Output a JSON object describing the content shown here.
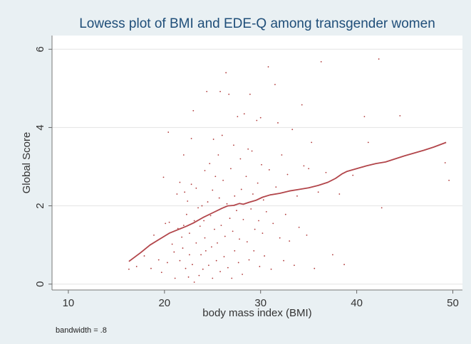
{
  "chart_data": {
    "type": "scatter",
    "title": "Lowess plot of BMI and EDE-Q among transgender women",
    "xlabel": "body mass index (BMI)",
    "ylabel": "Global Score",
    "note": "bandwidth = .8",
    "xlim": [
      8.3,
      51
    ],
    "ylim": [
      -0.15,
      6.35
    ],
    "xticks": [
      10,
      20,
      30,
      40,
      50
    ],
    "yticks": [
      0,
      2,
      4,
      6
    ],
    "grid": true,
    "colors": {
      "points": "#b03a3a",
      "line": "#b2454a",
      "plot_bg": "#ffffff",
      "outer_bg": "#e9f0f3",
      "title": "#1f4e79",
      "grid": "#e3e3e3"
    },
    "series": [
      {
        "type": "scatter",
        "points": [
          [
            16.3,
            0.38
          ],
          [
            17.1,
            0.45
          ],
          [
            17.9,
            0.72
          ],
          [
            18.6,
            0.4
          ],
          [
            18.9,
            1.25
          ],
          [
            19.4,
            0.62
          ],
          [
            19.7,
            0.3
          ],
          [
            19.9,
            2.73
          ],
          [
            20.1,
            1.55
          ],
          [
            20.3,
            0.55
          ],
          [
            20.4,
            3.88
          ],
          [
            20.5,
            1.58
          ],
          [
            20.8,
            1.02
          ],
          [
            21.0,
            0.82
          ],
          [
            21.1,
            0.15
          ],
          [
            21.3,
            2.3
          ],
          [
            21.4,
            1.42
          ],
          [
            21.6,
            2.6
          ],
          [
            21.6,
            0.6
          ],
          [
            21.8,
            1.2
          ],
          [
            21.9,
            0.92
          ],
          [
            22.0,
            3.3
          ],
          [
            22.0,
            1.5
          ],
          [
            22.1,
            2.35
          ],
          [
            22.2,
            0.4
          ],
          [
            22.3,
            1.78
          ],
          [
            22.4,
            2.12
          ],
          [
            22.5,
            0.18
          ],
          [
            22.6,
            0.75
          ],
          [
            22.6,
            1.3
          ],
          [
            22.8,
            3.72
          ],
          [
            22.8,
            2.55
          ],
          [
            22.9,
            0.5
          ],
          [
            23.0,
            4.43
          ],
          [
            23.1,
            1.62
          ],
          [
            23.1,
            0.05
          ],
          [
            23.3,
            1.05
          ],
          [
            23.3,
            2.45
          ],
          [
            23.5,
            1.95
          ],
          [
            23.6,
            0.22
          ],
          [
            23.7,
            1.48
          ],
          [
            23.8,
            0.75
          ],
          [
            23.9,
            2.0
          ],
          [
            24.0,
            0.38
          ],
          [
            24.1,
            1.62
          ],
          [
            24.2,
            1.18
          ],
          [
            24.2,
            2.9
          ],
          [
            24.3,
            0.85
          ],
          [
            24.4,
            4.92
          ],
          [
            24.5,
            2.1
          ],
          [
            24.6,
            0.48
          ],
          [
            24.7,
            3.08
          ],
          [
            24.8,
            1.75
          ],
          [
            24.9,
            0.95
          ],
          [
            25.0,
            2.4
          ],
          [
            25.0,
            0.15
          ],
          [
            25.1,
            3.7
          ],
          [
            25.2,
            1.4
          ],
          [
            25.3,
            2.75
          ],
          [
            25.4,
            0.6
          ],
          [
            25.5,
            1.05
          ],
          [
            25.6,
            3.3
          ],
          [
            25.7,
            2.2
          ],
          [
            25.8,
            4.92
          ],
          [
            25.8,
            0.32
          ],
          [
            25.9,
            1.5
          ],
          [
            26.0,
            3.8
          ],
          [
            26.1,
            2.65
          ],
          [
            26.2,
            0.7
          ],
          [
            26.3,
            1.22
          ],
          [
            26.4,
            5.4
          ],
          [
            26.5,
            2.05
          ],
          [
            26.6,
            0.42
          ],
          [
            26.7,
            4.85
          ],
          [
            26.8,
            1.68
          ],
          [
            26.9,
            2.95
          ],
          [
            27.0,
            0.15
          ],
          [
            27.1,
            1.35
          ],
          [
            27.2,
            3.55
          ],
          [
            27.3,
            0.85
          ],
          [
            27.3,
            2.25
          ],
          [
            27.5,
            1.88
          ],
          [
            27.6,
            4.28
          ],
          [
            27.7,
            0.55
          ],
          [
            27.8,
            1.15
          ],
          [
            27.9,
            3.2
          ],
          [
            28.0,
            2.42
          ],
          [
            28.1,
            0.25
          ],
          [
            28.2,
            1.65
          ],
          [
            28.3,
            4.35
          ],
          [
            28.5,
            2.75
          ],
          [
            28.6,
            1.08
          ],
          [
            28.7,
            3.45
          ],
          [
            28.8,
            0.62
          ],
          [
            28.9,
            4.85
          ],
          [
            29.0,
            1.92
          ],
          [
            29.1,
            3.4
          ],
          [
            29.2,
            2.3
          ],
          [
            29.3,
            0.85
          ],
          [
            29.4,
            1.4
          ],
          [
            29.6,
            4.18
          ],
          [
            29.7,
            2.58
          ],
          [
            29.8,
            1.62
          ],
          [
            29.9,
            0.45
          ],
          [
            30.0,
            4.25
          ],
          [
            30.1,
            3.05
          ],
          [
            30.2,
            1.3
          ],
          [
            30.3,
            2.15
          ],
          [
            30.4,
            0.72
          ],
          [
            30.6,
            1.85
          ],
          [
            30.8,
            5.55
          ],
          [
            30.9,
            2.92
          ],
          [
            31.1,
            0.38
          ],
          [
            31.3,
            1.55
          ],
          [
            31.5,
            5.1
          ],
          [
            31.6,
            2.48
          ],
          [
            31.8,
            4.12
          ],
          [
            32.0,
            1.18
          ],
          [
            32.2,
            3.3
          ],
          [
            32.4,
            0.6
          ],
          [
            32.6,
            1.78
          ],
          [
            32.8,
            2.8
          ],
          [
            33.0,
            1.1
          ],
          [
            33.3,
            3.95
          ],
          [
            33.5,
            0.48
          ],
          [
            33.8,
            2.25
          ],
          [
            34.0,
            1.45
          ],
          [
            34.3,
            4.58
          ],
          [
            34.5,
            3.02
          ],
          [
            34.8,
            1.25
          ],
          [
            35.0,
            2.95
          ],
          [
            35.3,
            3.62
          ],
          [
            35.6,
            0.4
          ],
          [
            36.0,
            2.35
          ],
          [
            36.3,
            5.68
          ],
          [
            36.8,
            2.85
          ],
          [
            37.5,
            0.75
          ],
          [
            38.2,
            2.3
          ],
          [
            38.7,
            0.5
          ],
          [
            39.6,
            2.78
          ],
          [
            40.8,
            4.28
          ],
          [
            41.2,
            3.62
          ],
          [
            42.3,
            5.75
          ],
          [
            42.6,
            1.95
          ],
          [
            44.5,
            4.3
          ],
          [
            49.2,
            3.1
          ],
          [
            49.6,
            2.65
          ]
        ]
      },
      {
        "type": "line",
        "points": [
          [
            16.3,
            0.58
          ],
          [
            17.5,
            0.8
          ],
          [
            18.5,
            1.0
          ],
          [
            19.5,
            1.15
          ],
          [
            20.5,
            1.3
          ],
          [
            21.5,
            1.4
          ],
          [
            22.3,
            1.48
          ],
          [
            23.0,
            1.56
          ],
          [
            24.0,
            1.7
          ],
          [
            25.0,
            1.82
          ],
          [
            26.0,
            1.94
          ],
          [
            26.6,
            2.0
          ],
          [
            27.2,
            2.01
          ],
          [
            27.8,
            2.06
          ],
          [
            28.2,
            2.04
          ],
          [
            28.8,
            2.09
          ],
          [
            29.5,
            2.14
          ],
          [
            30.2,
            2.22
          ],
          [
            31.0,
            2.28
          ],
          [
            32.0,
            2.32
          ],
          [
            33.0,
            2.38
          ],
          [
            34.0,
            2.42
          ],
          [
            35.0,
            2.46
          ],
          [
            36.0,
            2.52
          ],
          [
            37.0,
            2.6
          ],
          [
            37.8,
            2.7
          ],
          [
            38.5,
            2.82
          ],
          [
            39.0,
            2.88
          ],
          [
            40.0,
            2.95
          ],
          [
            41.0,
            3.02
          ],
          [
            42.0,
            3.08
          ],
          [
            43.0,
            3.12
          ],
          [
            44.0,
            3.2
          ],
          [
            45.0,
            3.28
          ],
          [
            46.0,
            3.35
          ],
          [
            47.0,
            3.42
          ],
          [
            48.0,
            3.5
          ],
          [
            49.3,
            3.62
          ]
        ]
      }
    ]
  }
}
